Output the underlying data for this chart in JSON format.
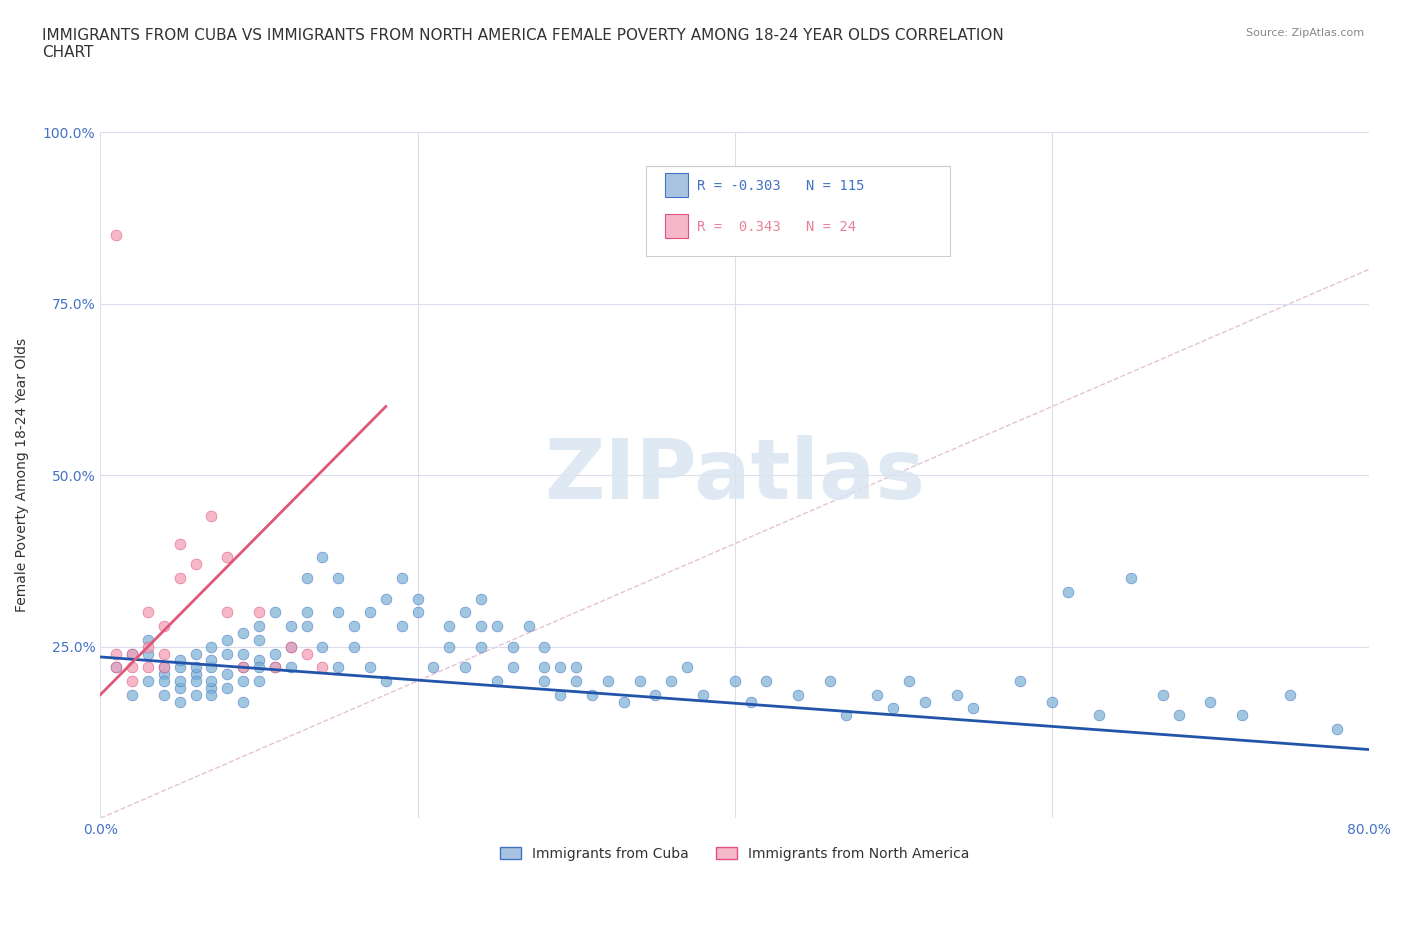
{
  "title": "IMMIGRANTS FROM CUBA VS IMMIGRANTS FROM NORTH AMERICA FEMALE POVERTY AMONG 18-24 YEAR OLDS CORRELATION\nCHART",
  "source_text": "Source: ZipAtlas.com",
  "xlabel": "",
  "ylabel": "Female Poverty Among 18-24 Year Olds",
  "xlim": [
    0,
    0.8
  ],
  "ylim": [
    0,
    1.0
  ],
  "xticks": [
    0.0,
    0.2,
    0.4,
    0.6,
    0.8
  ],
  "xticklabels": [
    "0.0%",
    "",
    "",
    "",
    "80.0%"
  ],
  "yticks": [
    0.0,
    0.25,
    0.5,
    0.75,
    1.0
  ],
  "yticklabels": [
    "",
    "25.0%",
    "50.0%",
    "75.0%",
    "100.0%"
  ],
  "background_color": "#ffffff",
  "watermark_text": "ZIPatlas",
  "legend_entries": [
    {
      "label": "Immigrants from Cuba",
      "color": "#a8c4e0"
    },
    {
      "label": "Immigrants from North America",
      "color": "#f4b8c8"
    }
  ],
  "inset_legend": {
    "line1": {
      "R": "-0.303",
      "N": "115",
      "color": "#4472c4"
    },
    "line2": {
      "R": "0.343",
      "N": "24",
      "color": "#e8829a"
    }
  },
  "blue_scatter": {
    "x": [
      0.01,
      0.02,
      0.02,
      0.03,
      0.03,
      0.03,
      0.04,
      0.04,
      0.04,
      0.04,
      0.05,
      0.05,
      0.05,
      0.05,
      0.05,
      0.06,
      0.06,
      0.06,
      0.06,
      0.06,
      0.07,
      0.07,
      0.07,
      0.07,
      0.07,
      0.07,
      0.08,
      0.08,
      0.08,
      0.08,
      0.09,
      0.09,
      0.09,
      0.09,
      0.09,
      0.1,
      0.1,
      0.1,
      0.1,
      0.1,
      0.11,
      0.11,
      0.11,
      0.12,
      0.12,
      0.12,
      0.13,
      0.13,
      0.13,
      0.14,
      0.14,
      0.15,
      0.15,
      0.15,
      0.16,
      0.16,
      0.17,
      0.17,
      0.18,
      0.18,
      0.19,
      0.19,
      0.2,
      0.2,
      0.21,
      0.22,
      0.22,
      0.23,
      0.23,
      0.24,
      0.24,
      0.24,
      0.25,
      0.25,
      0.26,
      0.26,
      0.27,
      0.28,
      0.28,
      0.28,
      0.29,
      0.29,
      0.3,
      0.3,
      0.31,
      0.32,
      0.33,
      0.34,
      0.35,
      0.36,
      0.37,
      0.38,
      0.4,
      0.41,
      0.42,
      0.44,
      0.46,
      0.47,
      0.49,
      0.5,
      0.51,
      0.52,
      0.54,
      0.55,
      0.58,
      0.6,
      0.61,
      0.63,
      0.65,
      0.67,
      0.68,
      0.7,
      0.72,
      0.75,
      0.78
    ],
    "y": [
      0.22,
      0.18,
      0.24,
      0.2,
      0.24,
      0.26,
      0.21,
      0.22,
      0.18,
      0.2,
      0.19,
      0.22,
      0.2,
      0.17,
      0.23,
      0.21,
      0.2,
      0.22,
      0.24,
      0.18,
      0.19,
      0.22,
      0.25,
      0.2,
      0.18,
      0.23,
      0.26,
      0.21,
      0.24,
      0.19,
      0.22,
      0.27,
      0.2,
      0.24,
      0.17,
      0.23,
      0.26,
      0.2,
      0.22,
      0.28,
      0.3,
      0.24,
      0.22,
      0.25,
      0.28,
      0.22,
      0.35,
      0.28,
      0.3,
      0.25,
      0.38,
      0.3,
      0.22,
      0.35,
      0.25,
      0.28,
      0.3,
      0.22,
      0.32,
      0.2,
      0.28,
      0.35,
      0.3,
      0.32,
      0.22,
      0.28,
      0.25,
      0.3,
      0.22,
      0.28,
      0.32,
      0.25,
      0.2,
      0.28,
      0.22,
      0.25,
      0.28,
      0.22,
      0.25,
      0.2,
      0.22,
      0.18,
      0.2,
      0.22,
      0.18,
      0.2,
      0.17,
      0.2,
      0.18,
      0.2,
      0.22,
      0.18,
      0.2,
      0.17,
      0.2,
      0.18,
      0.2,
      0.15,
      0.18,
      0.16,
      0.2,
      0.17,
      0.18,
      0.16,
      0.2,
      0.17,
      0.33,
      0.15,
      0.35,
      0.18,
      0.15,
      0.17,
      0.15,
      0.18,
      0.13
    ],
    "color": "#7aafd4",
    "edge_color": "#4472c4",
    "alpha": 0.7,
    "size": 60
  },
  "pink_scatter": {
    "x": [
      0.01,
      0.01,
      0.02,
      0.02,
      0.02,
      0.03,
      0.03,
      0.03,
      0.04,
      0.04,
      0.04,
      0.05,
      0.05,
      0.06,
      0.07,
      0.08,
      0.08,
      0.09,
      0.1,
      0.11,
      0.12,
      0.13,
      0.14,
      0.01
    ],
    "y": [
      0.22,
      0.24,
      0.2,
      0.22,
      0.24,
      0.22,
      0.25,
      0.3,
      0.22,
      0.24,
      0.28,
      0.35,
      0.4,
      0.37,
      0.44,
      0.38,
      0.3,
      0.22,
      0.3,
      0.22,
      0.25,
      0.24,
      0.22,
      0.85
    ],
    "color": "#f4a0b8",
    "edge_color": "#e05080",
    "alpha": 0.75,
    "size": 60
  },
  "blue_trendline": {
    "x_start": 0.0,
    "y_start": 0.235,
    "x_end": 0.8,
    "y_end": 0.1,
    "color": "#2255aa",
    "linewidth": 2.0
  },
  "pink_trendline": {
    "x_start": 0.0,
    "y_start": 0.18,
    "x_end": 0.18,
    "y_end": 0.6,
    "color": "#e05878",
    "linewidth": 2.0
  },
  "diagonal_line": {
    "color": "#cc88aa",
    "linestyle": "--",
    "alpha": 0.5,
    "linewidth": 1.0
  },
  "grid_color": "#ddddee",
  "title_fontsize": 11,
  "axis_label_fontsize": 10,
  "tick_fontsize": 10,
  "tick_color": "#4472c4",
  "watermark_color": "#d8e4f0",
  "watermark_fontsize": 60
}
